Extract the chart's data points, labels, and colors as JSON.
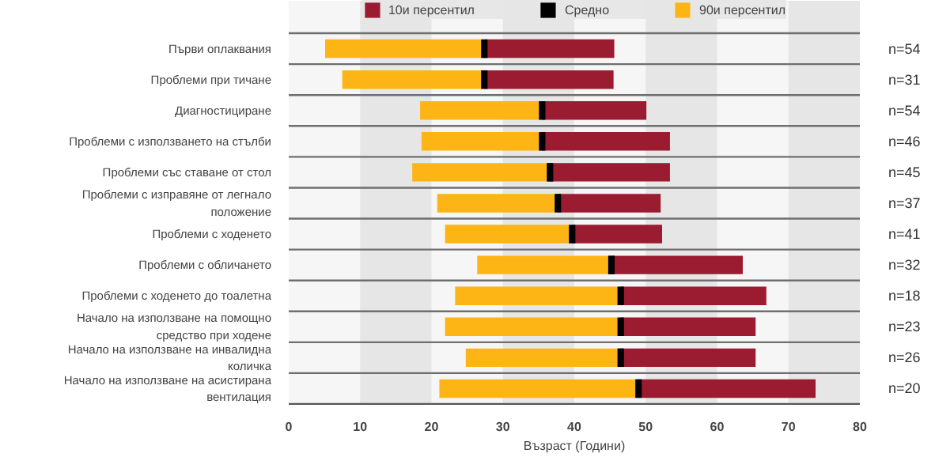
{
  "chart_data": {
    "type": "bar",
    "orientation": "horizontal",
    "xlabel": "Възраст (Години)",
    "categories": [
      "Първи оплаквания",
      "Проблеми при тичане",
      "Диагностициране",
      "Проблеми с използването на стълби",
      "Проблеми със ставане от стол",
      "Проблеми с изправяне от легнало\nположение",
      "Проблеми с ходенето",
      "Проблеми с обличането",
      "Проблеми с ходенето до тоалетна",
      "Начало на използване на помощно\nсредство при ходене",
      "Начало на използване на инвалидна\nколичка",
      "Начало на използване на асистирана\nвентилация"
    ],
    "series": [
      {
        "name": "90и персентил",
        "color": "#fdb515",
        "base": [
          5.1,
          7.5,
          18.4,
          18.6,
          17.3,
          20.8,
          21.9,
          26.4,
          23.3,
          21.9,
          24.8,
          21.1
        ],
        "values": [
          22.3,
          19.9,
          17.1,
          16.9,
          19.3,
          16.9,
          17.8,
          18.8,
          23.2,
          24.6,
          21.7,
          27.9
        ]
      },
      {
        "name": "10и персентил",
        "color": "#9b1b30",
        "base": [
          27.4,
          27.4,
          35.5,
          35.5,
          36.6,
          37.7,
          39.7,
          45.2,
          46.5,
          46.5,
          46.5,
          49.0
        ],
        "values": [
          18.2,
          18.1,
          14.6,
          17.9,
          16.8,
          14.4,
          12.6,
          18.4,
          20.4,
          18.9,
          18.9,
          24.8
        ]
      },
      {
        "name": "Средно",
        "type": "scatter",
        "color": "#000000",
        "values": [
          27.4,
          27.4,
          35.5,
          35.5,
          36.6,
          37.7,
          39.7,
          45.2,
          46.5,
          46.5,
          46.5,
          49.0
        ]
      }
    ],
    "annotations": [
      "n=54",
      "n=31",
      "n=54",
      "n=46",
      "n=45",
      "n=37",
      "n=41",
      "n=32",
      "n=18",
      "n=23",
      "n=26",
      "n=20"
    ],
    "xlim": [
      0,
      80
    ],
    "xticks": [
      0,
      10,
      20,
      30,
      40,
      50,
      60,
      70,
      80
    ],
    "legend": "top"
  }
}
